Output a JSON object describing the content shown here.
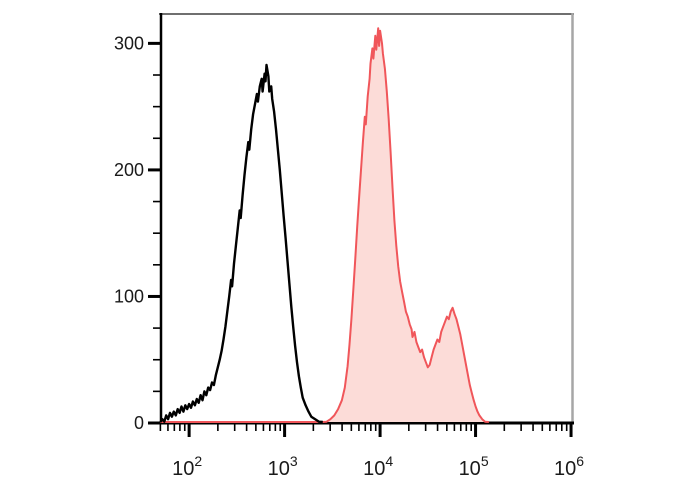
{
  "chart_data": {
    "type": "area",
    "subtype": "flow-cytometry-overlay-histogram",
    "title": "",
    "xlabel": "",
    "ylabel": "",
    "grid": false,
    "legend": false,
    "x_axis": {
      "scale": "log10",
      "lim_log10": [
        1.695,
        6.01
      ],
      "major_tick_exponents": [
        2,
        3,
        4,
        5,
        6
      ],
      "tick_label_base": "10",
      "minor_ticks": "logarithmic, 2-9 within each decade"
    },
    "y_axis": {
      "lim": [
        0,
        324
      ],
      "major_ticks": [
        0,
        100,
        200,
        300
      ],
      "minor_tick_step": 25
    },
    "frame": {
      "background": "#ffffff",
      "left_axis_color": "#000000",
      "bottom_axis_color": "#000000",
      "top_border_color": "#6f6f6f",
      "right_border_color": "#a6a6a6",
      "tick_color": "#000000",
      "label_color": "#1a1a1a"
    },
    "series": [
      {
        "name": "black_open_histogram",
        "stroke": "#000000",
        "stroke_width": 2.4,
        "fill": "none",
        "peak": {
          "log10x": 2.81,
          "count": 283
        },
        "points_log10x_count": [
          [
            1.7,
            0
          ],
          [
            1.72,
            3
          ],
          [
            1.74,
            1
          ],
          [
            1.76,
            6
          ],
          [
            1.78,
            3
          ],
          [
            1.8,
            8
          ],
          [
            1.82,
            5
          ],
          [
            1.84,
            9
          ],
          [
            1.86,
            6
          ],
          [
            1.88,
            11
          ],
          [
            1.9,
            8
          ],
          [
            1.92,
            13
          ],
          [
            1.94,
            9
          ],
          [
            1.96,
            14
          ],
          [
            1.98,
            11
          ],
          [
            2.0,
            15
          ],
          [
            2.02,
            12
          ],
          [
            2.04,
            17
          ],
          [
            2.06,
            14
          ],
          [
            2.08,
            19
          ],
          [
            2.1,
            16
          ],
          [
            2.12,
            22
          ],
          [
            2.14,
            18
          ],
          [
            2.16,
            25
          ],
          [
            2.18,
            22
          ],
          [
            2.2,
            28
          ],
          [
            2.22,
            26
          ],
          [
            2.24,
            32
          ],
          [
            2.26,
            30
          ],
          [
            2.28,
            38
          ],
          [
            2.3,
            44
          ],
          [
            2.32,
            50
          ],
          [
            2.34,
            57
          ],
          [
            2.36,
            66
          ],
          [
            2.38,
            76
          ],
          [
            2.4,
            88
          ],
          [
            2.42,
            100
          ],
          [
            2.44,
            113
          ],
          [
            2.45,
            108
          ],
          [
            2.47,
            126
          ],
          [
            2.49,
            140
          ],
          [
            2.51,
            154
          ],
          [
            2.53,
            168
          ],
          [
            2.54,
            162
          ],
          [
            2.56,
            180
          ],
          [
            2.58,
            196
          ],
          [
            2.6,
            210
          ],
          [
            2.62,
            222
          ],
          [
            2.63,
            216
          ],
          [
            2.65,
            232
          ],
          [
            2.67,
            244
          ],
          [
            2.69,
            252
          ],
          [
            2.71,
            260
          ],
          [
            2.72,
            254
          ],
          [
            2.74,
            266
          ],
          [
            2.76,
            272
          ],
          [
            2.77,
            262
          ],
          [
            2.79,
            276
          ],
          [
            2.8,
            270
          ],
          [
            2.81,
            283
          ],
          [
            2.83,
            274
          ],
          [
            2.84,
            262
          ],
          [
            2.86,
            266
          ],
          [
            2.87,
            256
          ],
          [
            2.89,
            246
          ],
          [
            2.91,
            232
          ],
          [
            2.93,
            216
          ],
          [
            2.95,
            200
          ],
          [
            2.97,
            182
          ],
          [
            2.99,
            164
          ],
          [
            3.01,
            146
          ],
          [
            3.03,
            128
          ],
          [
            3.05,
            110
          ],
          [
            3.07,
            92
          ],
          [
            3.09,
            76
          ],
          [
            3.11,
            61
          ],
          [
            3.13,
            48
          ],
          [
            3.15,
            37
          ],
          [
            3.17,
            28
          ],
          [
            3.19,
            20
          ],
          [
            3.22,
            14
          ],
          [
            3.25,
            9
          ],
          [
            3.28,
            5
          ],
          [
            3.32,
            3
          ],
          [
            3.36,
            1
          ],
          [
            3.4,
            0
          ]
        ]
      },
      {
        "name": "red_filled_histogram",
        "stroke": "#f0565a",
        "stroke_width": 2,
        "fill": "#fcdcd8",
        "peak": {
          "log10x": 3.98,
          "count": 312
        },
        "secondary_peak": {
          "log10x": 4.76,
          "count": 91
        },
        "points_log10x_count": [
          [
            1.7,
            0
          ],
          [
            3.4,
            0
          ],
          [
            3.44,
            1
          ],
          [
            3.48,
            3
          ],
          [
            3.52,
            6
          ],
          [
            3.56,
            11
          ],
          [
            3.6,
            18
          ],
          [
            3.63,
            28
          ],
          [
            3.66,
            45
          ],
          [
            3.68,
            62
          ],
          [
            3.7,
            82
          ],
          [
            3.72,
            105
          ],
          [
            3.74,
            130
          ],
          [
            3.76,
            155
          ],
          [
            3.78,
            178
          ],
          [
            3.8,
            200
          ],
          [
            3.82,
            222
          ],
          [
            3.84,
            242
          ],
          [
            3.85,
            236
          ],
          [
            3.87,
            258
          ],
          [
            3.89,
            272
          ],
          [
            3.9,
            284
          ],
          [
            3.92,
            296
          ],
          [
            3.93,
            288
          ],
          [
            3.95,
            306
          ],
          [
            3.96,
            295
          ],
          [
            3.98,
            312
          ],
          [
            3.99,
            298
          ],
          [
            4.0,
            310
          ],
          [
            4.02,
            300
          ],
          [
            4.03,
            292
          ],
          [
            4.05,
            280
          ],
          [
            4.07,
            262
          ],
          [
            4.09,
            240
          ],
          [
            4.11,
            214
          ],
          [
            4.13,
            186
          ],
          [
            4.15,
            160
          ],
          [
            4.17,
            140
          ],
          [
            4.19,
            124
          ],
          [
            4.21,
            112
          ],
          [
            4.23,
            104
          ],
          [
            4.25,
            96
          ],
          [
            4.27,
            88
          ],
          [
            4.29,
            84
          ],
          [
            4.31,
            78
          ],
          [
            4.33,
            74
          ],
          [
            4.34,
            68
          ],
          [
            4.36,
            72
          ],
          [
            4.38,
            64
          ],
          [
            4.4,
            60
          ],
          [
            4.42,
            56
          ],
          [
            4.44,
            58
          ],
          [
            4.46,
            52
          ],
          [
            4.48,
            48
          ],
          [
            4.5,
            44
          ],
          [
            4.52,
            46
          ],
          [
            4.54,
            52
          ],
          [
            4.56,
            58
          ],
          [
            4.58,
            62
          ],
          [
            4.6,
            66
          ],
          [
            4.62,
            64
          ],
          [
            4.64,
            72
          ],
          [
            4.66,
            76
          ],
          [
            4.68,
            80
          ],
          [
            4.7,
            84
          ],
          [
            4.72,
            82
          ],
          [
            4.74,
            88
          ],
          [
            4.76,
            91
          ],
          [
            4.78,
            86
          ],
          [
            4.8,
            82
          ],
          [
            4.82,
            76
          ],
          [
            4.84,
            70
          ],
          [
            4.86,
            62
          ],
          [
            4.88,
            54
          ],
          [
            4.9,
            46
          ],
          [
            4.92,
            38
          ],
          [
            4.94,
            30
          ],
          [
            4.96,
            24
          ],
          [
            4.98,
            18
          ],
          [
            5.0,
            13
          ],
          [
            5.02,
            9
          ],
          [
            5.04,
            6
          ],
          [
            5.07,
            3
          ],
          [
            5.1,
            1
          ],
          [
            5.14,
            0
          ]
        ]
      }
    ]
  }
}
